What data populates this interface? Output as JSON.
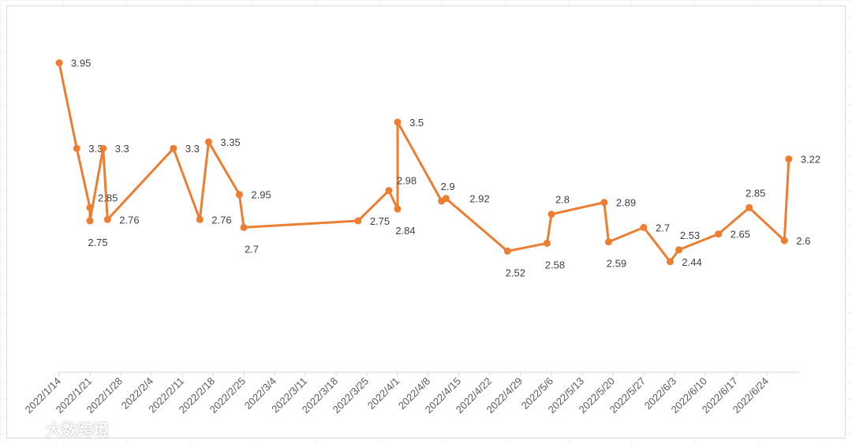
{
  "chart_data": {
    "type": "line",
    "title": "",
    "xlabel": "",
    "ylabel": "",
    "color": "#ED7D31",
    "x_tick_labels": [
      "2022/1/14",
      "2022/1/21",
      "2022/1/28",
      "2022/2/4",
      "2022/2/11",
      "2022/2/18",
      "2022/2/25",
      "2022/3/4",
      "2022/3/11",
      "2022/3/18",
      "2022/3/25",
      "2022/4/1",
      "2022/4/8",
      "2022/4/15",
      "2022/4/22",
      "2022/4/29",
      "2022/5/6",
      "2022/5/13",
      "2022/5/20",
      "2022/5/27",
      "2022/6/3",
      "2022/6/10",
      "2022/6/17",
      "2022/6/24"
    ],
    "x_range": [
      "2022-01-14",
      "2022-07-01"
    ],
    "y_range": [
      1.6,
      4.2
    ],
    "gridlines": false,
    "points": [
      {
        "date": "2022-01-14",
        "y": 3.95,
        "label": "3.95",
        "pos": "right"
      },
      {
        "date": "2022-01-18",
        "y": 3.3,
        "label": "3.3",
        "pos": "right"
      },
      {
        "date": "2022-01-21",
        "y": 2.85,
        "label": "2.85",
        "pos": "rightlow"
      },
      {
        "date": "2022-01-21",
        "y": 2.75,
        "label": "2.75",
        "pos": "below"
      },
      {
        "date": "2022-01-24",
        "y": 3.3,
        "label": "3.3",
        "pos": "right"
      },
      {
        "date": "2022-01-25",
        "y": 2.76,
        "label": "2.76",
        "pos": "right"
      },
      {
        "date": "2022-02-09",
        "y": 3.3,
        "label": "3.3",
        "pos": "right"
      },
      {
        "date": "2022-02-15",
        "y": 2.76,
        "label": "2.76",
        "pos": "right"
      },
      {
        "date": "2022-02-17",
        "y": 3.35,
        "label": "3.35",
        "pos": "right"
      },
      {
        "date": "2022-02-24",
        "y": 2.95,
        "label": "2.95",
        "pos": "right"
      },
      {
        "date": "2022-02-25",
        "y": 2.7,
        "label": "2.7",
        "pos": "below"
      },
      {
        "date": "2022-03-23",
        "y": 2.75,
        "label": "2.75",
        "pos": "right"
      },
      {
        "date": "2022-03-30",
        "y": 2.98,
        "label": "2.98",
        "pos": "rightlow"
      },
      {
        "date": "2022-04-01",
        "y": 2.84,
        "label": "2.84",
        "pos": "below"
      },
      {
        "date": "2022-04-01",
        "y": 3.5,
        "label": "3.5",
        "pos": "right"
      },
      {
        "date": "2022-04-11",
        "y": 2.9,
        "label": "2.9",
        "pos": "above"
      },
      {
        "date": "2022-04-12",
        "y": 2.92,
        "label": "2.92",
        "pos": "farright"
      },
      {
        "date": "2022-04-26",
        "y": 2.52,
        "label": "2.52",
        "pos": "below"
      },
      {
        "date": "2022-05-05",
        "y": 2.58,
        "label": "2.58",
        "pos": "below"
      },
      {
        "date": "2022-05-06",
        "y": 2.8,
        "label": "2.8",
        "pos": "upright"
      },
      {
        "date": "2022-05-18",
        "y": 2.89,
        "label": "2.89",
        "pos": "right"
      },
      {
        "date": "2022-05-19",
        "y": 2.59,
        "label": "2.59",
        "pos": "below"
      },
      {
        "date": "2022-05-27",
        "y": 2.7,
        "label": "2.7",
        "pos": "right"
      },
      {
        "date": "2022-06-02",
        "y": 2.44,
        "label": "2.44",
        "pos": "right"
      },
      {
        "date": "2022-06-04",
        "y": 2.53,
        "label": "2.53",
        "pos": "upright"
      },
      {
        "date": "2022-06-13",
        "y": 2.65,
        "label": "2.65",
        "pos": "right"
      },
      {
        "date": "2022-06-20",
        "y": 2.85,
        "label": "2.85",
        "pos": "above"
      },
      {
        "date": "2022-06-28",
        "y": 2.6,
        "label": "2.6",
        "pos": "right"
      },
      {
        "date": "2022-06-29",
        "y": 3.22,
        "label": "3.22",
        "pos": "right"
      }
    ]
  },
  "watermark": {
    "text": "大数跨境"
  }
}
